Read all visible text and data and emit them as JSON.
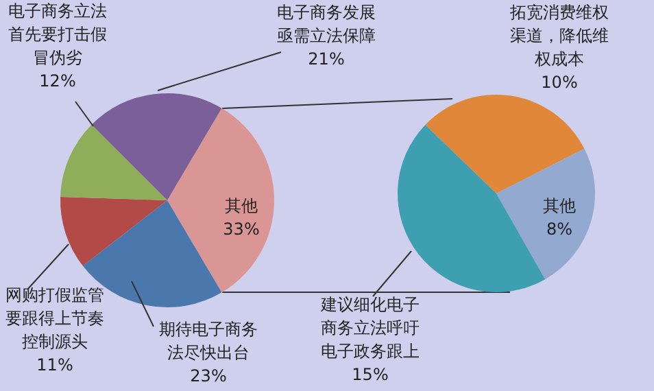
{
  "chart_data": [
    {
      "type": "pie",
      "categories": [
        "其他",
        "期待电子商务法尽快出台",
        "网购打假监管要跟得上节奏控制源头",
        "电子商务立法首先要打击假冒伪劣",
        "电子商务发展亟需立法保障"
      ],
      "values": [
        33,
        23,
        11,
        12,
        21
      ],
      "colors": [
        "#d99694",
        "#4a78ad",
        "#b24b47",
        "#8fad5a",
        "#7a5f99"
      ],
      "value_labels": [
        "33%",
        "23%",
        "11%",
        "12%",
        "21%"
      ]
    },
    {
      "type": "pie",
      "categories": [
        "拓宽消费维权渠道，降低维权成本",
        "其他",
        "建议细化电子商务立法呼吁电子政务跟上"
      ],
      "values": [
        10,
        8,
        15
      ],
      "colors": [
        "#e0873a",
        "#94a9cf",
        "#3e9fb0"
      ],
      "value_labels": [
        "10%",
        "8%",
        "15%"
      ]
    }
  ]
}
